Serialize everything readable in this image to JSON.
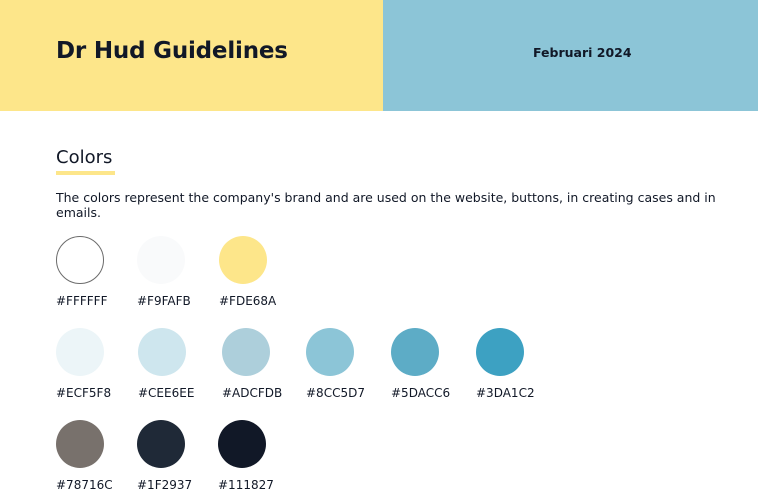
{
  "header": {
    "title": "Dr Hud Guidelines",
    "date": "Februari 2024",
    "colors": {
      "left": "#FDE68A",
      "right": "#8CC5D7"
    }
  },
  "section": {
    "title": "Colors",
    "description": "The colors represent the company's brand and are used on the website, buttons, in creating cases and in emails.",
    "underline_color": "#FDE68A"
  },
  "swatches": [
    {
      "hex": "#FFFFFF",
      "label": "#FFFFFF",
      "outlined": true
    },
    {
      "hex": "#F9FAFB",
      "label": "#F9FAFB"
    },
    {
      "hex": "#FDE68A",
      "label": "#FDE68A"
    },
    {
      "hex": "#ECF5F8",
      "label": "#ECF5F8"
    },
    {
      "hex": "#CEE6EE",
      "label": "#CEE6EE"
    },
    {
      "hex": "#ADCFDB",
      "label": "#ADCFDB"
    },
    {
      "hex": "#8CC5D7",
      "label": "#8CC5D7"
    },
    {
      "hex": "#5DACC6",
      "label": "#5DACC6"
    },
    {
      "hex": "#3DA1C2",
      "label": "#3DA1C2"
    },
    {
      "hex": "#78716C",
      "label": "#78716C"
    },
    {
      "hex": "#1F2937",
      "label": "#1F2937"
    },
    {
      "hex": "#111827",
      "label": "#111827"
    }
  ]
}
